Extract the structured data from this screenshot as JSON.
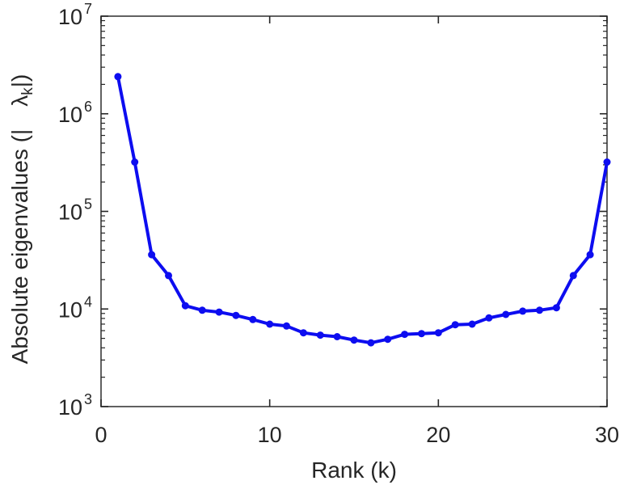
{
  "figure": {
    "background": "#ffffff",
    "axis_color": "#262626",
    "box_color": "#3a3a3a"
  },
  "chart_data": {
    "type": "line",
    "title": "",
    "xlabel": "Rank (k)",
    "ylabel": "Absolute eigenvalues (|  λk|)",
    "ylabel_parts": {
      "prefix": "Absolute eigenvalues (|  ",
      "symbol": "λ",
      "subscript": "k",
      "suffix": "|)"
    },
    "series": [
      {
        "name": "absolute-eigenvalues",
        "color": "#0d0df0",
        "marker": "filled-circle",
        "x": [
          1,
          2,
          3,
          4,
          5,
          6,
          7,
          8,
          9,
          10,
          11,
          12,
          13,
          14,
          15,
          16,
          17,
          18,
          19,
          20,
          21,
          22,
          23,
          24,
          25,
          26,
          27,
          28,
          29,
          30
        ],
        "y": [
          2400000,
          320000,
          36000,
          22000,
          10800,
          9700,
          9300,
          8600,
          7800,
          7000,
          6700,
          5700,
          5400,
          5200,
          4800,
          4500,
          4900,
          5500,
          5600,
          5700,
          6900,
          7000,
          8100,
          8800,
          9500,
          9700,
          10300,
          22000,
          36000,
          320000
        ]
      }
    ],
    "x_axis": {
      "lim": [
        0,
        30
      ],
      "scale": "linear",
      "ticks": [
        0,
        10,
        20,
        30
      ]
    },
    "y_axis": {
      "lim_exponents": [
        3,
        7
      ],
      "scale": "log10",
      "tick_base": "10",
      "tick_exponents": [
        3,
        4,
        5,
        6,
        7
      ],
      "minor_tick_multiples": [
        2,
        3,
        4,
        5,
        6,
        7,
        8,
        9
      ]
    },
    "grid": false,
    "legend": null,
    "box": "on"
  }
}
